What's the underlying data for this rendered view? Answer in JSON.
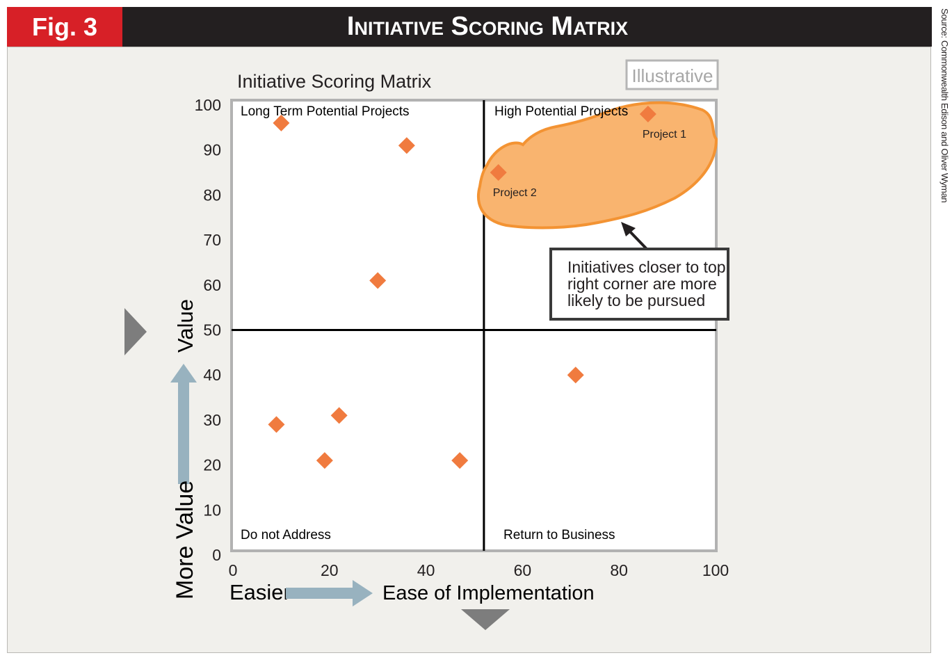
{
  "banner": {
    "fig_label": "Fig. 3",
    "title": "Initiative Scoring Matrix"
  },
  "source": "Source: Commonwealth Edison and Oliver Wyman",
  "illustrative_badge": "Illustrative",
  "annotation": {
    "text_lines": [
      "Initiatives closer to top",
      "right corner are more",
      "likely to be pursued"
    ]
  },
  "axis_words": {
    "x_easier": "Easier",
    "y_more_value": "More Value"
  },
  "colors": {
    "banner": "#231f20",
    "fig_red": "#d72027",
    "marker": "#f07b3f",
    "highlight_fill": "#f9b46f",
    "highlight_stroke": "#f39333",
    "arrow_blue": "#98b2bf",
    "pointer_gray": "#7d7d7d",
    "panel_bg": "#f1f0ec"
  },
  "chart_data": {
    "type": "scatter",
    "title": "Initiative Scoring Matrix",
    "xlabel": "Ease of Implementation",
    "ylabel": "Value",
    "xlim": [
      0,
      100
    ],
    "ylim": [
      0,
      100
    ],
    "xticks": [
      0,
      20,
      40,
      60,
      80,
      100
    ],
    "yticks": [
      0,
      10,
      20,
      30,
      40,
      50,
      60,
      70,
      80,
      90,
      100
    ],
    "quadrant_dividers": {
      "x": 52,
      "y": 50
    },
    "quadrants": [
      {
        "label": "Long Term Potential Projects",
        "position": "top-left"
      },
      {
        "label": "High Potential Projects",
        "position": "top-right"
      },
      {
        "label": "Do not Address",
        "position": "bottom-left"
      },
      {
        "label": "Return to Business",
        "position": "bottom-right"
      }
    ],
    "points": [
      {
        "x": 10,
        "y": 96
      },
      {
        "x": 36,
        "y": 91
      },
      {
        "x": 30,
        "y": 61
      },
      {
        "x": 9,
        "y": 29
      },
      {
        "x": 19,
        "y": 21
      },
      {
        "x": 22,
        "y": 31
      },
      {
        "x": 47,
        "y": 21
      },
      {
        "x": 71,
        "y": 40
      },
      {
        "x": 55,
        "y": 85,
        "label": "Project 2"
      },
      {
        "x": 86,
        "y": 98,
        "label": "Project 1"
      }
    ],
    "grid": false,
    "legend": "none"
  }
}
